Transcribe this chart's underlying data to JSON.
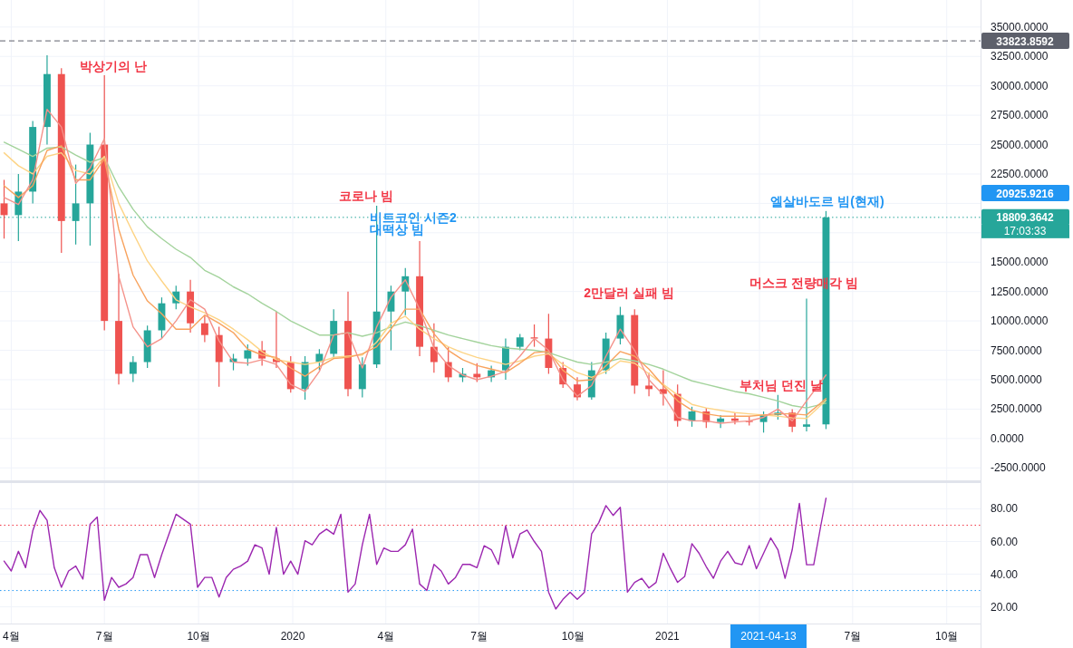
{
  "chart_data": [
    {
      "type": "candlestick",
      "grid": true,
      "tick_labels": "y",
      "xlim": [
        "2019-03-21",
        "2021-11-03"
      ],
      "ylim": [
        -3560,
        37300
      ],
      "xticks": [
        {
          "value": "2019-04-01",
          "label": null
        },
        {
          "value": "2019-07-01",
          "label": null
        },
        {
          "value": "2019-10-01",
          "label": null
        },
        {
          "value": "2020-01-01",
          "label": null
        },
        {
          "value": "2020-04-01",
          "label": null
        },
        {
          "value": "2020-07-01",
          "label": null
        },
        {
          "value": "2020-10-01",
          "label": null
        },
        {
          "value": "2021-01-01",
          "label": null
        },
        {
          "value": "2021-04-01",
          "label": null
        },
        {
          "value": "2021-07-01",
          "label": null
        },
        {
          "value": "2021-10-01",
          "label": null
        }
      ],
      "yticks": [
        {
          "value": -2500,
          "label": "-2500.0000"
        },
        {
          "value": 0,
          "label": "0.0000"
        },
        {
          "value": 2500,
          "label": "2500.0000"
        },
        {
          "value": 5000,
          "label": "5000.0000"
        },
        {
          "value": 7500,
          "label": "7500.0000"
        },
        {
          "value": 10000,
          "label": "10000.0000"
        },
        {
          "value": 12500,
          "label": "12500.0000"
        },
        {
          "value": 15000,
          "label": "15000.0000"
        },
        {
          "value": 17500,
          "label": null
        },
        {
          "value": 20000,
          "label": null
        },
        {
          "value": 22500,
          "label": "22500.0000"
        },
        {
          "value": 25000,
          "label": "25000.0000"
        },
        {
          "value": 27500,
          "label": "27500.0000"
        },
        {
          "value": 30000,
          "label": "30000.0000"
        },
        {
          "value": 32500,
          "label": "32500.0000"
        },
        {
          "value": 35000,
          "label": "35000.0000"
        }
      ],
      "x": [
        "2019-03-25",
        "2019-04-08",
        "2019-04-22",
        "2019-05-06",
        "2019-05-20",
        "2019-06-03",
        "2019-06-17",
        "2019-07-01",
        "2019-07-15",
        "2019-07-29",
        "2019-08-12",
        "2019-08-26",
        "2019-09-09",
        "2019-09-23",
        "2019-10-07",
        "2019-10-21",
        "2019-11-04",
        "2019-11-18",
        "2019-12-02",
        "2019-12-16",
        "2019-12-30",
        "2020-01-13",
        "2020-01-27",
        "2020-02-10",
        "2020-02-24",
        "2020-03-09",
        "2020-03-23",
        "2020-04-06",
        "2020-04-20",
        "2020-05-04",
        "2020-05-18",
        "2020-06-01",
        "2020-06-15",
        "2020-06-29",
        "2020-07-13",
        "2020-07-27",
        "2020-08-10",
        "2020-08-24",
        "2020-09-07",
        "2020-09-21",
        "2020-10-05",
        "2020-10-19",
        "2020-11-02",
        "2020-11-16",
        "2020-11-30",
        "2020-12-14",
        "2020-12-28",
        "2021-01-11",
        "2021-01-25",
        "2021-02-08",
        "2021-02-22",
        "2021-03-08",
        "2021-03-22",
        "2021-04-05",
        "2021-04-19",
        "2021-05-03",
        "2021-05-17",
        "2021-06-05"
      ],
      "series": [
        {
          "type": "line",
          "color": "#a3d39c",
          "values": [
            25200,
            24600,
            24000,
            24700,
            24800,
            24100,
            23500,
            23900,
            21400,
            19500,
            18000,
            17000,
            16100,
            15400,
            14300,
            13700,
            12900,
            12300,
            11500,
            10800,
            10000,
            9400,
            8800,
            8800,
            9000,
            8700,
            9000,
            9500,
            9900,
            9600,
            9200,
            8800,
            8500,
            8200,
            7900,
            7700,
            7600,
            7500,
            7300,
            6900,
            6500,
            6300,
            6500,
            6800,
            6600,
            6300,
            5900,
            5400,
            4900,
            4600,
            4300,
            4000,
            3800,
            3500,
            3200,
            2800,
            2600,
            3000
          ]
        },
        {
          "type": "line",
          "color": "#fdd486",
          "values": [
            24300,
            23200,
            22500,
            24000,
            24300,
            22800,
            22500,
            24000,
            20000,
            17500,
            15100,
            13400,
            11800,
            11200,
            10700,
            10100,
            9300,
            8400,
            7400,
            6700,
            6500,
            6300,
            6500,
            6900,
            7000,
            7100,
            8200,
            9800,
            10400,
            9300,
            8500,
            7800,
            7300,
            6900,
            6600,
            6300,
            6600,
            7000,
            7200,
            6300,
            5600,
            5200,
            5700,
            6600,
            6400,
            5500,
            4600,
            3700,
            2900,
            2600,
            2400,
            2200,
            2100,
            2000,
            1900,
            1750,
            1700,
            3250
          ]
        },
        {
          "type": "line",
          "color": "#f8a35e",
          "values": [
            21500,
            20500,
            21500,
            24500,
            24900,
            22000,
            22000,
            23800,
            17800,
            13900,
            11700,
            10600,
            9300,
            9300,
            10500,
            9800,
            9000,
            7600,
            7100,
            6900,
            6000,
            5300,
            6100,
            6800,
            6900,
            7200,
            7800,
            9300,
            11000,
            11000,
            8900,
            7500,
            6700,
            6200,
            5900,
            5600,
            6400,
            7300,
            7400,
            5800,
            4900,
            5000,
            6200,
            7400,
            7000,
            5900,
            4500,
            3200,
            2400,
            2100,
            1900,
            1900,
            1900,
            2000,
            2100,
            2100,
            2000,
            3400
          ]
        },
        {
          "type": "line",
          "color": "#f4928a",
          "values": [
            20500,
            19900,
            22000,
            28000,
            26500,
            21700,
            23000,
            25500,
            13800,
            9500,
            7800,
            8500,
            10000,
            11800,
            11000,
            8300,
            6500,
            6400,
            6700,
            6300,
            4600,
            4000,
            5700,
            8800,
            9000,
            6000,
            9500,
            12000,
            13500,
            11000,
            7700,
            6200,
            5400,
            5000,
            5300,
            5700,
            7000,
            8500,
            7500,
            5000,
            3600,
            4500,
            7000,
            9300,
            7500,
            5000,
            3700,
            1800,
            1500,
            1500,
            1300,
            1400,
            1500,
            1800,
            2500,
            1500,
            3200,
            5400
          ]
        },
        {
          "colors": [
            "#ef5350",
            "#26a69a",
            "#26a69a",
            "#26a69a",
            "#ef5350",
            "#26a69a",
            "#26a69a",
            "#ef5350",
            "#ef5350",
            "#26a69a",
            "#26a69a",
            "#26a69a",
            "#26a69a",
            "#ef5350",
            "#ef5350",
            "#ef5350",
            "#26a69a",
            "#26a69a",
            "#ef5350",
            "#ef5350",
            "#ef5350",
            "#26a69a",
            "#26a69a",
            "#26a69a",
            "#ef5350",
            "#26a69a",
            "#26a69a",
            "#26a69a",
            "#26a69a",
            "#ef5350",
            "#ef5350",
            "#ef5350",
            "#26a69a",
            "#ef5350",
            "#26a69a",
            "#26a69a",
            "#26a69a",
            "#ef5350",
            "#ef5350",
            "#ef5350",
            "#ef5350",
            "#26a69a",
            "#26a69a",
            "#26a69a",
            "#ef5350",
            "#ef5350",
            "#ef5350",
            "#ef5350",
            "#26a69a",
            "#ef5350",
            "#26a69a",
            "#ef5350",
            "#ef5350",
            "#26a69a",
            "#26a69a",
            "#ef5350",
            "#26a69a",
            "#26a69a"
          ],
          "ohlc": [
            [
              20000,
              22000,
              17000,
              19000
            ],
            [
              19000,
              22500,
              16800,
              21000
            ],
            [
              21000,
              27000,
              20000,
              26500
            ],
            [
              26500,
              32600,
              25000,
              31000
            ],
            [
              31000,
              31500,
              15800,
              18500
            ],
            [
              18500,
              23300,
              16500,
              20000
            ],
            [
              20000,
              26000,
              16400,
              25000
            ],
            [
              25000,
              30900,
              9200,
              10000
            ],
            [
              10000,
              14000,
              4600,
              5500
            ],
            [
              5500,
              7000,
              4800,
              6500
            ],
            [
              6500,
              9600,
              6000,
              9200
            ],
            [
              9200,
              12000,
              8500,
              11500
            ],
            [
              11500,
              13000,
              11000,
              12500
            ],
            [
              12500,
              13500,
              9000,
              9800
            ],
            [
              9800,
              10500,
              8200,
              8800
            ],
            [
              8800,
              9500,
              4400,
              6500
            ],
            [
              6500,
              7200,
              5800,
              6800
            ],
            [
              6800,
              8000,
              6200,
              7500
            ],
            [
              7500,
              8300,
              6200,
              6800
            ],
            [
              6800,
              10800,
              6000,
              6500
            ],
            [
              6500,
              7000,
              3900,
              4200
            ],
            [
              4200,
              7000,
              3300,
              6500
            ],
            [
              6500,
              7600,
              5800,
              7200
            ],
            [
              7200,
              11000,
              6800,
              10000
            ],
            [
              10000,
              12500,
              3600,
              4200
            ],
            [
              4200,
              6900,
              3500,
              6300
            ],
            [
              6300,
              19800,
              6000,
              10800
            ],
            [
              10800,
              13000,
              7500,
              12500
            ],
            [
              12500,
              14500,
              10500,
              13800
            ],
            [
              13800,
              16800,
              7000,
              7800
            ],
            [
              7800,
              9800,
              5600,
              6500
            ],
            [
              6500,
              7800,
              4800,
              5200
            ],
            [
              5200,
              6000,
              4800,
              5500
            ],
            [
              5500,
              6400,
              4800,
              5200
            ],
            [
              5200,
              6200,
              4800,
              5800
            ],
            [
              5800,
              8500,
              5000,
              7800
            ],
            [
              7800,
              8900,
              7500,
              8600
            ],
            [
              8600,
              9700,
              7800,
              8500
            ],
            [
              8500,
              10600,
              5500,
              6000
            ],
            [
              6000,
              6500,
              4300,
              4600
            ],
            [
              4600,
              5200,
              3250,
              3500
            ],
            [
              3500,
              6500,
              3300,
              5800
            ],
            [
              5800,
              9000,
              5500,
              8500
            ],
            [
              8500,
              11200,
              8000,
              10500
            ],
            [
              10500,
              11000,
              3800,
              4500
            ],
            [
              4500,
              5600,
              3600,
              4200
            ],
            [
              4200,
              5800,
              2800,
              3800
            ],
            [
              3800,
              4600,
              1000,
              1500
            ],
            [
              1500,
              2700,
              1000,
              2300
            ],
            [
              2300,
              2600,
              900,
              1400
            ],
            [
              1400,
              2000,
              900,
              1700
            ],
            [
              1700,
              2200,
              1200,
              1500
            ],
            [
              1500,
              1900,
              1100,
              1400
            ],
            [
              1400,
              2300,
              500,
              2000
            ],
            [
              2000,
              3700,
              1600,
              2200
            ],
            [
              2200,
              2500,
              550,
              1000
            ],
            [
              1000,
              11900,
              600,
              1200
            ],
            [
              1200,
              19350,
              800,
              18809.3642
            ]
          ]
        }
      ],
      "ref_lines": [
        {
          "axis": "y",
          "value": 33823.8592,
          "label": "33823.8592",
          "color": "#5d606b",
          "line_style": "dashed"
        },
        {
          "axis": "y",
          "value": 18809.3642,
          "label": "18809.3642",
          "color": "#26a69a",
          "line_style": "dotted"
        }
      ],
      "annotations": [
        "박상기의 난",
        "코로나 빔",
        "비트코인 시즌2",
        "대떡상 빔",
        "2만달러 실패 빔",
        "머스크 전량매각 빔",
        "부처님 던진 날",
        "엘살바도르 빔(현재)",
        "20925.9216",
        "17:03:33"
      ]
    },
    {
      "type": "line",
      "grid": true,
      "xlim": [
        "2019-03-21",
        "2021-11-03"
      ],
      "ylim": [
        9.8,
        95.8
      ],
      "xticks": [
        {
          "value": "2019-04-01",
          "label": "4월"
        },
        {
          "value": "2019-07-01",
          "label": "7월"
        },
        {
          "value": "2019-10-01",
          "label": "10월"
        },
        {
          "value": "2020-01-01",
          "label": "2020"
        },
        {
          "value": "2020-04-01",
          "label": "4월"
        },
        {
          "value": "2020-07-01",
          "label": "7월"
        },
        {
          "value": "2020-10-01",
          "label": "10월"
        },
        {
          "value": "2021-01-01",
          "label": "2021"
        },
        {
          "value": "2021-04-01",
          "label": null
        },
        {
          "value": "2021-07-01",
          "label": "7월"
        },
        {
          "value": "2021-10-01",
          "label": "10월"
        }
      ],
      "yticks": [
        {
          "value": 20,
          "label": "20.00"
        },
        {
          "value": 40,
          "label": "40.00"
        },
        {
          "value": 60,
          "label": "60.00"
        },
        {
          "value": 80,
          "label": "80.00"
        }
      ],
      "x": [
        "2019-03-25",
        "2019-04-01",
        "2019-04-08",
        "2019-04-15",
        "2019-04-22",
        "2019-04-29",
        "2019-05-06",
        "2019-05-13",
        "2019-05-20",
        "2019-05-27",
        "2019-06-03",
        "2019-06-10",
        "2019-06-17",
        "2019-06-24",
        "2019-07-01",
        "2019-07-08",
        "2019-07-15",
        "2019-07-22",
        "2019-07-29",
        "2019-08-05",
        "2019-08-12",
        "2019-08-19",
        "2019-08-26",
        "2019-09-02",
        "2019-09-09",
        "2019-09-16",
        "2019-09-23",
        "2019-09-30",
        "2019-10-07",
        "2019-10-14",
        "2019-10-21",
        "2019-10-28",
        "2019-11-04",
        "2019-11-11",
        "2019-11-18",
        "2019-11-25",
        "2019-12-02",
        "2019-12-09",
        "2019-12-16",
        "2019-12-23",
        "2019-12-30",
        "2020-01-06",
        "2020-01-13",
        "2020-01-20",
        "2020-01-27",
        "2020-02-03",
        "2020-02-10",
        "2020-02-17",
        "2020-02-24",
        "2020-03-02",
        "2020-03-09",
        "2020-03-16",
        "2020-03-23",
        "2020-03-30",
        "2020-04-06",
        "2020-04-13",
        "2020-04-20",
        "2020-04-27",
        "2020-05-04",
        "2020-05-11",
        "2020-05-18",
        "2020-05-25",
        "2020-06-01",
        "2020-06-08",
        "2020-06-15",
        "2020-06-22",
        "2020-06-29",
        "2020-07-06",
        "2020-07-13",
        "2020-07-20",
        "2020-07-27",
        "2020-08-03",
        "2020-08-10",
        "2020-08-17",
        "2020-08-24",
        "2020-08-31",
        "2020-09-07",
        "2020-09-14",
        "2020-09-21",
        "2020-09-28",
        "2020-10-05",
        "2020-10-12",
        "2020-10-19",
        "2020-10-26",
        "2020-11-02",
        "2020-11-09",
        "2020-11-16",
        "2020-11-23",
        "2020-11-30",
        "2020-12-07",
        "2020-12-14",
        "2020-12-21",
        "2020-12-28",
        "2021-01-04",
        "2021-01-11",
        "2021-01-18",
        "2021-01-25",
        "2021-02-01",
        "2021-02-08",
        "2021-02-15",
        "2021-02-22",
        "2021-03-01",
        "2021-03-08",
        "2021-03-15",
        "2021-03-22",
        "2021-03-29",
        "2021-04-05",
        "2021-04-12",
        "2021-04-19",
        "2021-04-26",
        "2021-05-03",
        "2021-05-10",
        "2021-05-17",
        "2021-05-24",
        "2021-05-31",
        "2021-06-05"
      ],
      "series": [
        {
          "color": "#9c27b0",
          "values": [
            48,
            42,
            54,
            44,
            66.5,
            79,
            73,
            44,
            32,
            42,
            45,
            37,
            70.6,
            75,
            24,
            38,
            32,
            34,
            38,
            52,
            52,
            38,
            52,
            64.5,
            76.7,
            73.7,
            70.6,
            32,
            38,
            38,
            26,
            38,
            43,
            45,
            48,
            58,
            56,
            40,
            68.6,
            40,
            48,
            40,
            60.5,
            58,
            64.5,
            67.6,
            64.5,
            76.7,
            29,
            34,
            58,
            76.7,
            46,
            56,
            54,
            54,
            58,
            67.6,
            34,
            30,
            46,
            42,
            34,
            38,
            46,
            46,
            44,
            57.4,
            55,
            46,
            69.6,
            50,
            64.6,
            67,
            60,
            54,
            29,
            18.7,
            24.6,
            29,
            24.6,
            29,
            64.6,
            71.6,
            82,
            76,
            81,
            29,
            35,
            37.5,
            31.6,
            35,
            52.8,
            43.4,
            35,
            38.7,
            58.7,
            52.8,
            44.6,
            37.5,
            48,
            54,
            47,
            45.8,
            57.5,
            43.4,
            52.8,
            62.2,
            55,
            37.5,
            55,
            83.4,
            45.8,
            45.8,
            70,
            86.5
          ]
        }
      ],
      "ref_lines": [
        {
          "axis": "y",
          "value": 70,
          "color": "#f23645",
          "line_style": "dotted"
        },
        {
          "axis": "y",
          "value": 30,
          "color": "#2196f3",
          "line_style": "dotted"
        }
      ],
      "annotations": [
        "2021-04-13"
      ]
    }
  ]
}
